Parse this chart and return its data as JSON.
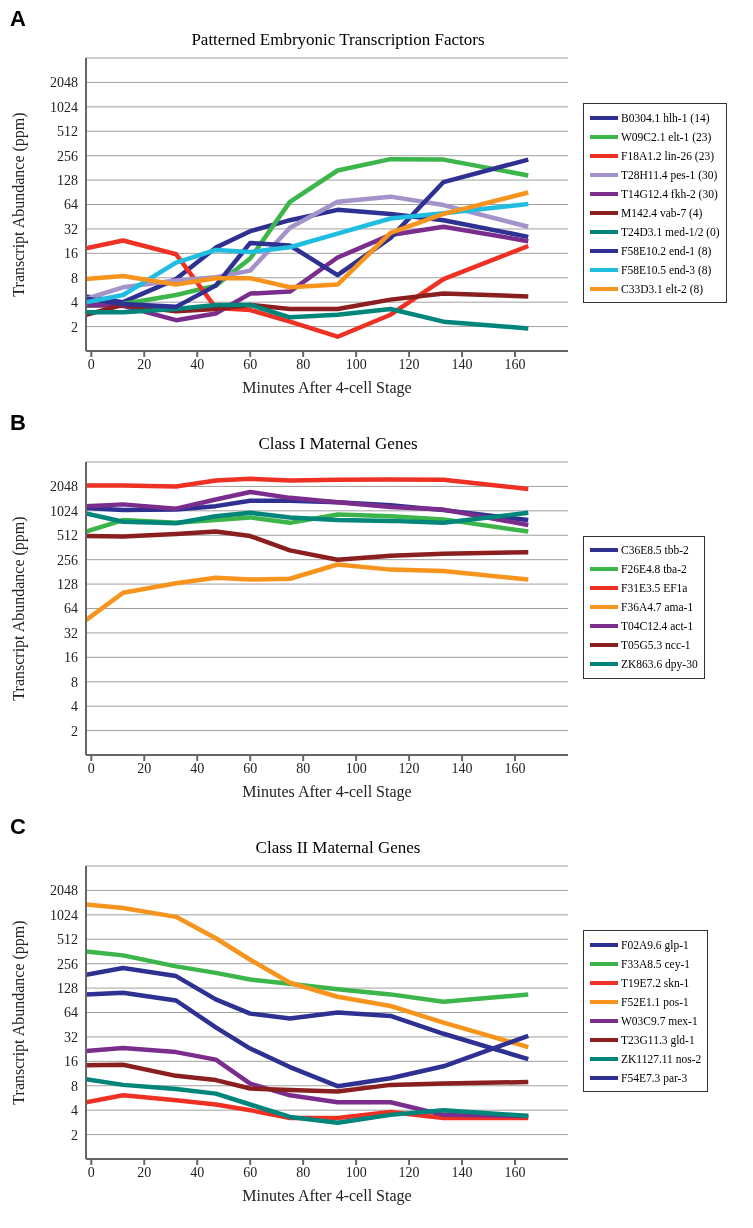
{
  "chart_data": [
    {
      "type": "line",
      "title": "Patterned Embryonic Transcription Factors",
      "xlabel": "Minutes After 4-cell Stage",
      "ylabel": "Transcript Abundance (ppm)",
      "annotations": [
        "A"
      ],
      "x": [
        -2,
        12,
        32,
        47,
        60,
        75,
        93,
        113,
        133,
        165
      ],
      "xlim": [
        -2,
        180
      ],
      "xticks": [
        0,
        20,
        40,
        60,
        80,
        100,
        120,
        140,
        160
      ],
      "ylim": [
        1,
        4096
      ],
      "yticks": [
        2,
        4,
        8,
        16,
        32,
        64,
        128,
        256,
        512,
        1024,
        2048
      ],
      "log": "y",
      "grid": "y",
      "legend": "right",
      "series": [
        {
          "name": "B0304.1 hlh-1 (14)",
          "color": "#2e3192",
          "values": [
            4.7,
            4,
            7.7,
            18.8,
            30,
            41,
            55,
            49,
            41,
            25.5
          ]
        },
        {
          "name": "W09C2.1 elt-1 (23)",
          "color": "#3cb54a",
          "values": [
            3.6,
            3.8,
            4.9,
            6.4,
            13.8,
            69,
            168,
            232,
            229,
            146
          ]
        },
        {
          "name": "F18A1.2 lin-26 (23)",
          "color": "#ee3124",
          "values": [
            18.4,
            23,
            15.6,
            3.4,
            3.2,
            2.3,
            1.5,
            2.8,
            7.7,
            19.7
          ]
        },
        {
          "name": "T28H11.4 pes-1 (30)",
          "color": "#a393c8",
          "values": [
            4.4,
            6.1,
            7.4,
            8.1,
            9.8,
            33,
            69,
            80,
            63,
            34
          ]
        },
        {
          "name": "T14G12.4 fkh-2 (30)",
          "color": "#7b2d8e",
          "values": [
            3.7,
            3.6,
            2.4,
            2.9,
            5.1,
            5.4,
            14.2,
            27,
            34,
            22.6
          ]
        },
        {
          "name": "M142.4 vab-7 (4)",
          "color": "#8b1e1e",
          "values": [
            2.8,
            3.7,
            3.1,
            3.3,
            3.7,
            3.3,
            3.3,
            4.3,
            5.1,
            4.7
          ]
        },
        {
          "name": "T24D3.1 med-1/2 (0)",
          "color": "#00857a",
          "values": [
            3,
            3,
            3.3,
            3.7,
            3.7,
            2.6,
            2.8,
            3.3,
            2.3,
            1.9
          ]
        },
        {
          "name": "F58E10.2 end-1 (8)",
          "color": "#2e3192",
          "values": [
            4.4,
            3.8,
            3.5,
            6.4,
            21.5,
            20,
            8.6,
            24.8,
            121,
            229
          ]
        },
        {
          "name": "F58E10.5 end-3 (8)",
          "color": "#1fbde0",
          "values": [
            4,
            4.9,
            12.3,
            17.6,
            16.6,
            19,
            28,
            43,
            50,
            65
          ]
        },
        {
          "name": "C33D3.1 elt-2 (8)",
          "color": "#f7941d",
          "values": [
            7.7,
            8.4,
            6.6,
            7.9,
            7.9,
            6.1,
            6.6,
            28.6,
            49,
            90
          ]
        }
      ]
    },
    {
      "type": "line",
      "title": "Class I Maternal Genes",
      "xlabel": "Minutes After 4-cell Stage",
      "ylabel": "Transcript Abundance (ppm)",
      "annotations": [
        "B"
      ],
      "x": [
        -2,
        12,
        32,
        47,
        60,
        75,
        93,
        113,
        133,
        165
      ],
      "xlim": [
        -2,
        180
      ],
      "xticks": [
        0,
        20,
        40,
        60,
        80,
        100,
        120,
        140,
        160
      ],
      "ylim": [
        1,
        4096
      ],
      "yticks": [
        2,
        4,
        8,
        16,
        32,
        64,
        128,
        256,
        512,
        1024,
        2048
      ],
      "log": "y",
      "grid": "y",
      "legend": "right",
      "series": [
        {
          "name": "C36E8.5 tbb-2",
          "color": "#2e3192",
          "values": [
            1110,
            1045,
            1060,
            1170,
            1360,
            1360,
            1310,
            1200,
            1045,
            787
          ]
        },
        {
          "name": "F26E4.8 tba-2",
          "color": "#3cb54a",
          "values": [
            568,
            787,
            728,
            787,
            850,
            728,
            923,
            880,
            803,
            568
          ]
        },
        {
          "name": "F31E3.5 EF1a",
          "color": "#ee3124",
          "values": [
            2100,
            2100,
            2040,
            2420,
            2540,
            2420,
            2470,
            2500,
            2470,
            1900
          ]
        },
        {
          "name": "F36A4.7 ama-1",
          "color": "#f7941d",
          "values": [
            46,
            100,
            131,
            153,
            146,
            149,
            223,
            193,
            185,
            146
          ]
        },
        {
          "name": "T04C12.4 act-1",
          "color": "#7b2d8e",
          "values": [
            1170,
            1230,
            1090,
            1410,
            1750,
            1480,
            1310,
            1140,
            1060,
            685
          ]
        },
        {
          "name": "T05G5.3 ncc-1",
          "color": "#8b1e1e",
          "values": [
            500,
            495,
            530,
            568,
            500,
            333,
            256,
            286,
            302,
            317
          ]
        },
        {
          "name": "ZK863.6 dpy-30",
          "color": "#00857a",
          "values": [
            950,
            750,
            720,
            880,
            970,
            850,
            787,
            770,
            728,
            970
          ]
        }
      ]
    },
    {
      "type": "line",
      "title": "Class II Maternal Genes",
      "xlabel": "Minutes After 4-cell Stage",
      "ylabel": "Transcript Abundance (ppm)",
      "annotations": [
        "C"
      ],
      "x": [
        -2,
        12,
        32,
        47,
        60,
        75,
        93,
        113,
        133,
        165
      ],
      "xlim": [
        -2,
        180
      ],
      "xticks": [
        0,
        20,
        40,
        60,
        80,
        100,
        120,
        140,
        160
      ],
      "ylim": [
        1,
        4096
      ],
      "yticks": [
        2,
        4,
        8,
        16,
        32,
        64,
        128,
        256,
        512,
        1024,
        2048
      ],
      "log": "y",
      "grid": "y",
      "legend": "right",
      "series": [
        {
          "name": "F02A9.6 glp-1",
          "color": "#2e3192",
          "values": [
            187,
            226,
            180,
            93,
            62,
            54,
            64,
            58,
            35,
            17
          ]
        },
        {
          "name": "F33A8.5 cey-1",
          "color": "#3cb54a",
          "values": [
            362,
            324,
            237,
            197,
            163,
            145,
            124,
            107,
            87,
            107
          ]
        },
        {
          "name": "T19E7.2 skn-1",
          "color": "#ee3124",
          "values": [
            5,
            6.1,
            5.3,
            4.7,
            4,
            3.2,
            3.2,
            3.8,
            3.2,
            3.2
          ]
        },
        {
          "name": "F52E1.1 pos-1",
          "color": "#f7941d",
          "values": [
            1370,
            1245,
            967,
            527,
            286,
            149,
            100,
            77,
            48,
            24
          ]
        },
        {
          "name": "W03C9.7 mex-1",
          "color": "#7b2d8e",
          "values": [
            21.4,
            23.3,
            20.8,
            16.8,
            8.5,
            6.1,
            5,
            5,
            3.5,
            3.4
          ]
        },
        {
          "name": "T23G11.3 gld-1",
          "color": "#8b1e1e",
          "values": [
            14.3,
            14.5,
            10.6,
            9.4,
            7.4,
            7.1,
            6.8,
            8.2,
            8.5,
            8.9
          ]
        },
        {
          "name": "ZK1127.11 nos-2",
          "color": "#00857a",
          "values": [
            9.6,
            8.2,
            7.3,
            6.4,
            4.7,
            3.3,
            2.8,
            3.5,
            4,
            3.4
          ]
        },
        {
          "name": "F54E7.3 par-3",
          "color": "#2e3192",
          "values": [
            107,
            112,
            90,
            42,
            23,
            13.6,
            7.9,
            9.9,
            13.9,
            33
          ]
        }
      ]
    }
  ]
}
